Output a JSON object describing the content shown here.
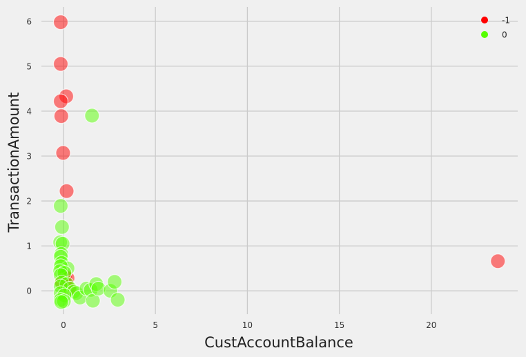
{
  "chart_data": {
    "type": "scatter",
    "title": "",
    "xlabel": "CustAccountBalance",
    "ylabel": "TransactionAmount",
    "xlim": [
      -1.2,
      24.7
    ],
    "ylim": [
      -0.52,
      6.32
    ],
    "xticks": [
      0,
      5,
      10,
      15,
      20
    ],
    "yticks": [
      0,
      1,
      2,
      3,
      4,
      5,
      6
    ],
    "grid": true,
    "legend_position": "top-right",
    "background": "#f0f0f0",
    "series": [
      {
        "name": "-1",
        "color": "#ff0000",
        "points": [
          [
            -0.15,
            5.98
          ],
          [
            -0.15,
            5.05
          ],
          [
            0.15,
            4.33
          ],
          [
            -0.15,
            4.22
          ],
          [
            -0.12,
            3.89
          ],
          [
            -0.02,
            3.07
          ],
          [
            0.17,
            2.22
          ],
          [
            23.62,
            0.66
          ],
          [
            0.08,
            0.32
          ],
          [
            0.22,
            0.28
          ],
          [
            -0.1,
            0.2
          ],
          [
            0.3,
            0.05
          ]
        ]
      },
      {
        "name": "0",
        "color": "#55ff00",
        "points": [
          [
            1.55,
            3.9
          ],
          [
            -0.15,
            1.89
          ],
          [
            -0.08,
            1.42
          ],
          [
            -0.18,
            1.08
          ],
          [
            -0.05,
            1.05
          ],
          [
            -0.12,
            0.82
          ],
          [
            -0.15,
            0.76
          ],
          [
            -0.1,
            0.62
          ],
          [
            0.22,
            0.5
          ],
          [
            -0.15,
            0.55
          ],
          [
            -0.18,
            0.44
          ],
          [
            0.05,
            0.4
          ],
          [
            -0.15,
            0.35
          ],
          [
            -0.1,
            0.18
          ],
          [
            0.18,
            0.15
          ],
          [
            -0.15,
            0.1
          ],
          [
            0.35,
            0.05
          ],
          [
            0.55,
            -0.02
          ],
          [
            0.7,
            -0.05
          ],
          [
            -0.15,
            -0.05
          ],
          [
            0.05,
            -0.1
          ],
          [
            0.9,
            -0.15
          ],
          [
            -0.15,
            -0.2
          ],
          [
            0.02,
            -0.23
          ],
          [
            -0.12,
            -0.25
          ],
          [
            1.25,
            0.05
          ],
          [
            1.48,
            0.02
          ],
          [
            1.6,
            -0.22
          ],
          [
            1.78,
            0.15
          ],
          [
            1.9,
            0.05
          ],
          [
            2.55,
            0.0
          ],
          [
            2.78,
            0.2
          ],
          [
            2.95,
            -0.2
          ]
        ]
      }
    ]
  }
}
